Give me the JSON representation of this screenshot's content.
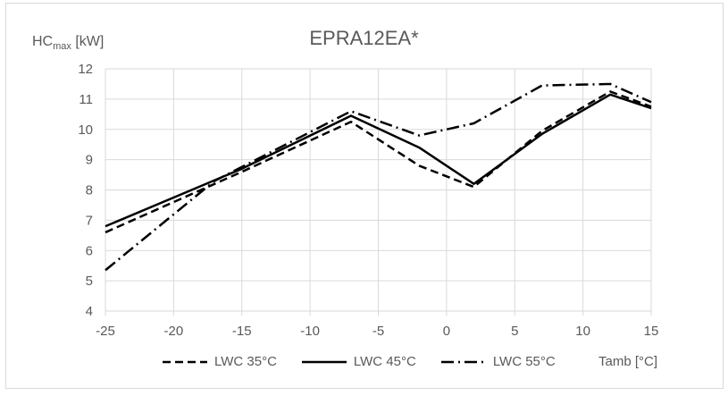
{
  "chart_data": {
    "type": "line",
    "title": "EPRA12EA*",
    "xlabel": "Tamb [°C]",
    "ylabel_main": "HC",
    "ylabel_sub": "max",
    "ylabel_unit": " [kW]",
    "xlim": [
      -25,
      15
    ],
    "ylim": [
      4,
      12
    ],
    "xticks": [
      -25,
      -20,
      -15,
      -10,
      -5,
      0,
      5,
      10,
      15
    ],
    "yticks": [
      4,
      5,
      6,
      7,
      8,
      9,
      10,
      11,
      12
    ],
    "grid": true,
    "legend_position": "bottom",
    "series": [
      {
        "name": "LWC 35°C",
        "style": "dashed",
        "x": [
          -25,
          -15,
          -7,
          -2,
          2,
          7,
          12,
          15
        ],
        "y": [
          6.6,
          8.6,
          10.25,
          8.8,
          8.1,
          9.95,
          11.25,
          10.75
        ]
      },
      {
        "name": "LWC 45°C",
        "style": "solid",
        "x": [
          -25,
          -15,
          -7,
          -2,
          2,
          7,
          12,
          15
        ],
        "y": [
          6.8,
          8.7,
          10.45,
          9.4,
          8.2,
          9.85,
          11.15,
          10.7
        ]
      },
      {
        "name": "LWC 55°C",
        "style": "dashdot",
        "x": [
          -25,
          -17,
          -7,
          -2,
          2,
          7,
          12,
          15
        ],
        "y": [
          5.35,
          8.3,
          10.6,
          9.8,
          10.2,
          11.45,
          11.5,
          10.9
        ]
      }
    ],
    "line_color": "#000000",
    "grid_color": "#d9d9d9"
  }
}
